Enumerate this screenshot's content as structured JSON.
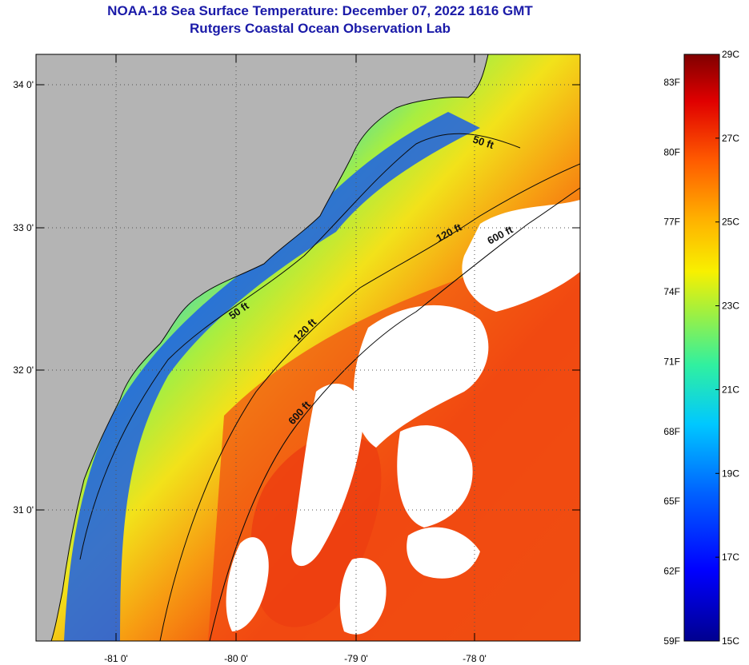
{
  "header": {
    "title": "NOAA-18 Sea Surface Temperature:  December 07, 2022 1616 GMT",
    "subtitle": "Rutgers Coastal Ocean Observation Lab"
  },
  "map": {
    "lat_ticks": [
      "34 0'",
      "33 0'",
      "32 0'",
      "31 0'"
    ],
    "lon_ticks": [
      "-81 0'",
      "-80 0'",
      "-79 0'",
      "-78 0'"
    ],
    "contours": [
      "50 ft",
      "120 ft",
      "600 ft",
      "50 ft",
      "120 ft",
      "600 ft"
    ],
    "colors": {
      "land": "#b4b4b4",
      "cloud": "#ffffff",
      "coast": "#0a0a0a"
    }
  },
  "colorbar": {
    "fahrenheit": [
      "83F",
      "80F",
      "77F",
      "74F",
      "71F",
      "68F",
      "65F",
      "62F",
      "59F"
    ],
    "celsius": [
      "29C",
      "27C",
      "25C",
      "23C",
      "21C",
      "19C",
      "17C",
      "15C"
    ],
    "range_c": [
      15,
      29
    ]
  }
}
